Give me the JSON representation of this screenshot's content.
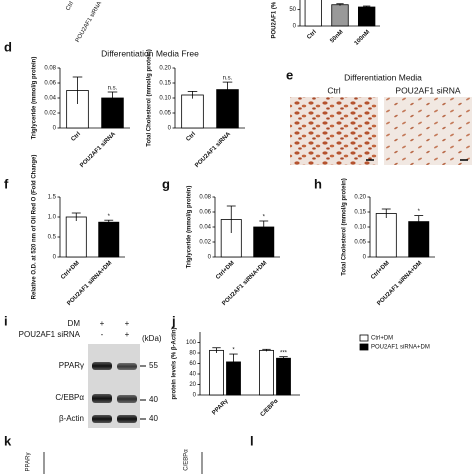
{
  "top_labels": [
    "Ctrl",
    "POU2AF1 siRNA"
  ],
  "panel_labels": {
    "d": "d",
    "e": "e",
    "f": "f",
    "g": "g",
    "h": "h",
    "i": "i",
    "j": "j",
    "k": "k",
    "l": "l"
  },
  "headers": {
    "d": "Differentiation Media Free",
    "e": "Differentiation Media"
  },
  "images": {
    "labels": [
      "Ctrl",
      "POU2AF1 siRNA"
    ]
  },
  "blot": {
    "treatments": [
      {
        "name": "DM",
        "marks": [
          "+",
          "+"
        ]
      },
      {
        "name": "POU2AF1 siRNA",
        "marks": [
          "-",
          "+"
        ]
      }
    ],
    "unit": "(kDa)",
    "bands": [
      {
        "name": "PPARγ",
        "marker": 55
      },
      {
        "name": "C/EBPα",
        "marker": 40
      },
      {
        "name": "β-Actin",
        "marker": 40
      }
    ]
  },
  "cut_panels": [
    {
      "ylabel": "PPARγ"
    },
    {
      "ylabel": "C/EBPα"
    }
  ],
  "chart_data": [
    {
      "type": "bar",
      "ylabel": "POU2AF1 (% β-Actin)",
      "categories": [
        "Ctrl",
        "50nM",
        "100nM"
      ],
      "values": [
        100,
        65,
        58
      ],
      "errors": [
        4,
        3,
        3
      ],
      "colors": [
        "#ffffff",
        "#999999",
        "#000000"
      ],
      "ylim": [
        0,
        110
      ],
      "yticks": [
        0,
        50,
        100
      ]
    },
    {
      "type": "bar",
      "ylabel": "Triglyceride (mmol/g protein)",
      "categories": [
        "Ctrl",
        "POU2AF1 siRNA"
      ],
      "values": [
        0.05,
        0.04
      ],
      "errors": [
        0.018,
        0.008
      ],
      "colors": [
        "#ffffff",
        "#000000"
      ],
      "value_annotations": [
        null,
        "n.s."
      ],
      "ylim": [
        0,
        0.08
      ],
      "yticks": [
        0,
        0.02,
        0.04,
        0.06,
        0.08
      ]
    },
    {
      "type": "bar",
      "ylabel": "Total Cholesterol (mmol/g protein)",
      "categories": [
        "Ctrl",
        "POU2AF1 siRNA"
      ],
      "values": [
        0.11,
        0.128
      ],
      "errors": [
        0.012,
        0.025
      ],
      "colors": [
        "#ffffff",
        "#000000"
      ],
      "value_annotations": [
        null,
        "n.s."
      ],
      "ylim": [
        0,
        0.2
      ],
      "yticks": [
        0,
        0.05,
        {
          "value": 0.1,
          "label": "0.10"
        },
        0.15,
        {
          "value": 0.2,
          "label": "0.20"
        }
      ]
    },
    {
      "type": "bar",
      "ylabel": "Relative O.D. at 520 nm of Oil Red O (Fold Change)",
      "categories": [
        "Ctrl+DM",
        "POU2AF1 siRNA+DM"
      ],
      "values": [
        1.0,
        0.87
      ],
      "errors": [
        0.1,
        0.05
      ],
      "colors": [
        "#ffffff",
        "#000000"
      ],
      "value_annotations": [
        null,
        "*"
      ],
      "ylim": [
        0,
        1.5
      ],
      "yticks": [
        0,
        0.5,
        {
          "value": 1,
          "label": "1.0"
        },
        1.5
      ]
    },
    {
      "type": "bar",
      "ylabel": "Triglyceride (mmol/g protein)",
      "categories": [
        "Ctrl+DM",
        "POU2AF1 siRNA+DM"
      ],
      "values": [
        0.05,
        0.04
      ],
      "errors": [
        0.018,
        0.008
      ],
      "colors": [
        "#ffffff",
        "#000000"
      ],
      "value_annotations": [
        null,
        "*"
      ],
      "ylim": [
        0,
        0.08
      ],
      "yticks": [
        0,
        0.02,
        0.04,
        0.06,
        0.08
      ]
    },
    {
      "type": "bar",
      "ylabel": "Total Cholesterol (mmol/g protein)",
      "categories": [
        "Ctrl+DM",
        "POU2AF1 siRNA+DM"
      ],
      "values": [
        0.145,
        0.118
      ],
      "errors": [
        0.015,
        0.02
      ],
      "colors": [
        "#ffffff",
        "#000000"
      ],
      "value_annotations": [
        null,
        "*"
      ],
      "ylim": [
        0,
        0.2
      ],
      "yticks": [
        0,
        0.05,
        {
          "value": 0.1,
          "label": "0.10"
        },
        0.15,
        {
          "value": 0.2,
          "label": "0.20"
        }
      ]
    },
    {
      "type": "grouped_bar",
      "ylabel": "protein levels (% β-Actin)",
      "categories": [
        "PPARγ",
        "C/EBPα"
      ],
      "series": [
        {
          "name": "Ctrl+DM",
          "color": "#ffffff",
          "values": [
            85,
            85
          ],
          "errors": [
            5,
            2
          ]
        },
        {
          "name": "POU2AF1 siRNA+DM",
          "color": "#000000",
          "values": [
            63,
            70
          ],
          "errors": [
            15,
            3
          ],
          "annotations": [
            "*",
            "***"
          ]
        }
      ],
      "legend": "right",
      "ylim": [
        0,
        120
      ],
      "yticks": [
        0,
        20,
        40,
        60,
        80,
        100
      ]
    }
  ]
}
